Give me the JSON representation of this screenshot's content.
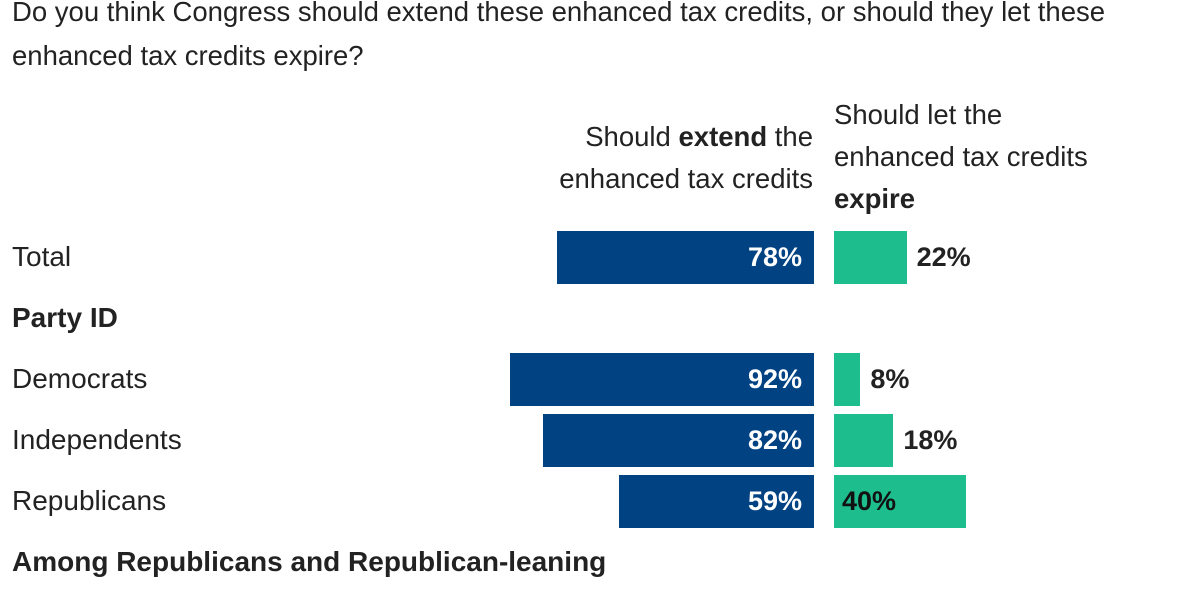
{
  "question": "Do you think Congress should extend these enhanced tax credits, or should they let these enhanced tax credits expire?",
  "columns": {
    "extend": {
      "pre": "Should ",
      "bold": "extend",
      "mid": " the",
      "line2": "enhanced tax credits"
    },
    "expire": {
      "line1": "Should let the",
      "line2": "enhanced tax credits",
      "bold": "expire"
    }
  },
  "colors": {
    "extend": "#004282",
    "expire": "#1ebd8d"
  },
  "chart_data": {
    "type": "bar",
    "orientation": "horizontal-diverging",
    "title": "Do you think Congress should extend these enhanced tax credits, or should they let these enhanced tax credits expire?",
    "series": [
      {
        "name": "Should extend the enhanced tax credits",
        "color": "#004282"
      },
      {
        "name": "Should let the enhanced tax credits expire",
        "color": "#1ebd8d"
      }
    ],
    "rows": [
      {
        "kind": "row",
        "label": "Total",
        "extend": 78,
        "expire": 22,
        "extend_label": "78%",
        "expire_label": "22%"
      },
      {
        "kind": "heading",
        "label": "Party ID"
      },
      {
        "kind": "row",
        "label": "Democrats",
        "extend": 92,
        "expire": 8,
        "extend_label": "92%",
        "expire_label": "8%"
      },
      {
        "kind": "row",
        "label": "Independents",
        "extend": 82,
        "expire": 18,
        "extend_label": "82%",
        "expire_label": "18%"
      },
      {
        "kind": "row",
        "label": "Republicans",
        "extend": 59,
        "expire": 40,
        "extend_label": "59%",
        "expire_label": "40%"
      },
      {
        "kind": "heading",
        "label": "Among Republicans and Republican-leaning"
      }
    ]
  }
}
